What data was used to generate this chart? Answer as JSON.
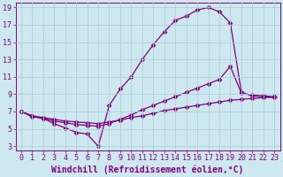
{
  "line1_x": [
    0,
    1,
    2,
    3,
    4,
    5,
    6,
    7,
    8,
    9,
    10,
    11,
    12,
    13,
    14,
    15,
    16,
    17,
    18,
    19,
    20,
    21,
    22,
    23
  ],
  "line1_y": [
    7.0,
    6.4,
    6.2,
    5.6,
    5.1,
    4.6,
    4.4,
    3.0,
    7.7,
    9.6,
    11.0,
    13.0,
    14.7,
    16.2,
    17.5,
    18.0,
    18.7,
    19.0,
    18.5,
    17.2,
    9.2,
    8.8,
    8.7,
    8.6
  ],
  "line2_x": [
    0,
    1,
    2,
    3,
    4,
    5,
    6,
    7,
    8,
    9,
    10,
    11,
    12,
    13,
    14,
    15,
    16,
    17,
    18,
    19,
    20,
    21,
    22,
    23
  ],
  "line2_y": [
    7.0,
    6.5,
    6.2,
    5.9,
    5.7,
    5.5,
    5.4,
    5.3,
    5.6,
    6.1,
    6.6,
    7.2,
    7.7,
    8.2,
    8.7,
    9.2,
    9.7,
    10.2,
    10.7,
    12.2,
    9.1,
    8.9,
    8.8,
    8.7
  ],
  "line3_x": [
    0,
    1,
    2,
    3,
    4,
    5,
    6,
    7,
    8,
    9,
    10,
    11,
    12,
    13,
    14,
    15,
    16,
    17,
    18,
    19,
    20,
    21,
    22,
    23
  ],
  "line3_y": [
    7.0,
    6.5,
    6.3,
    6.1,
    5.9,
    5.8,
    5.7,
    5.6,
    5.8,
    6.0,
    6.3,
    6.5,
    6.8,
    7.1,
    7.3,
    7.5,
    7.7,
    7.9,
    8.1,
    8.3,
    8.4,
    8.5,
    8.6,
    8.7
  ],
  "line_color": "#800080",
  "bg_color": "#cde8f0",
  "grid_color": "#b0d0dc",
  "xlabel": "Windchill (Refroidissement éolien,°C)",
  "xlim": [
    -0.5,
    23.5
  ],
  "ylim": [
    2.5,
    19.5
  ],
  "yticks": [
    3,
    5,
    7,
    9,
    11,
    13,
    15,
    17,
    19
  ],
  "xticks": [
    0,
    1,
    2,
    3,
    4,
    5,
    6,
    7,
    8,
    9,
    10,
    11,
    12,
    13,
    14,
    15,
    16,
    17,
    18,
    19,
    20,
    21,
    22,
    23
  ],
  "marker": "D",
  "marker_size": 2.5,
  "line_width": 0.9,
  "xlabel_fontsize": 7.0,
  "tick_fontsize": 6.0
}
